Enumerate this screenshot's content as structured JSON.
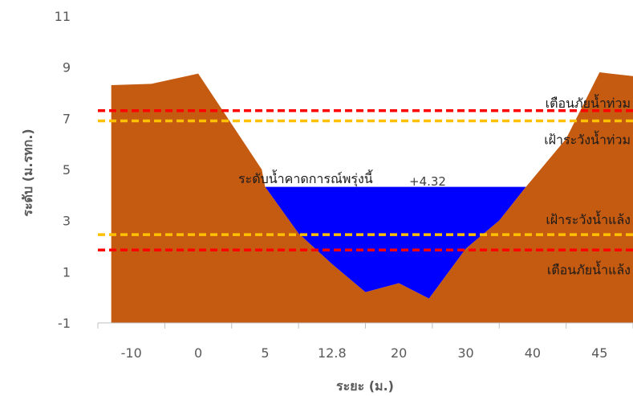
{
  "chart_data": {
    "type": "area",
    "xlabel": "ระยะ (ม.)",
    "ylabel": "ระดับ (ม.รทก.)",
    "ylim": [
      -1,
      11
    ],
    "yticks": [
      -1,
      1,
      3,
      5,
      7,
      9,
      11
    ],
    "grid": false,
    "categories": [
      "-10",
      "0",
      "5",
      "12.8",
      "20",
      "30",
      "40",
      "45"
    ],
    "ground_profile": [
      {
        "x": -0.3,
        "y": 8.3
      },
      {
        "x": 0.3,
        "y": 8.35
      },
      {
        "x": 1.0,
        "y": 8.75
      },
      {
        "x": 1.95,
        "y": 5.0
      },
      {
        "x": 2.0,
        "y": 4.32
      },
      {
        "x": 2.5,
        "y": 2.5
      },
      {
        "x": 3.0,
        "y": 1.3
      },
      {
        "x": 3.5,
        "y": 0.2
      },
      {
        "x": 4.0,
        "y": 0.55
      },
      {
        "x": 4.45,
        "y": -0.05
      },
      {
        "x": 5.0,
        "y": 1.9
      },
      {
        "x": 5.5,
        "y": 3.0
      },
      {
        "x": 5.9,
        "y": 4.32
      },
      {
        "x": 6.5,
        "y": 6.2
      },
      {
        "x": 7.0,
        "y": 8.8
      },
      {
        "x": 7.5,
        "y": 8.65
      }
    ],
    "water_level": {
      "label": "ระดับน้ำคาดการณ์พรุ่งนี้",
      "value_label": "+4.32",
      "value": 4.32
    },
    "thresholds": [
      {
        "label": "เตือนภัยน้ำท่วม",
        "value": 7.3,
        "color": "#ff0000"
      },
      {
        "label": "เฝ้าระวังน้ำท่วม",
        "value": 6.9,
        "color": "#ffc000"
      },
      {
        "label": "เฝ้าระวังน้ำแล้ง",
        "value": 2.45,
        "color": "#ffc000"
      },
      {
        "label": "เตือนภัยน้ำแล้ง",
        "value": 1.85,
        "color": "#ff0000"
      }
    ],
    "colors": {
      "ground": "#c55a11",
      "water": "#0000ff",
      "axis": "#bfbfbf"
    }
  }
}
